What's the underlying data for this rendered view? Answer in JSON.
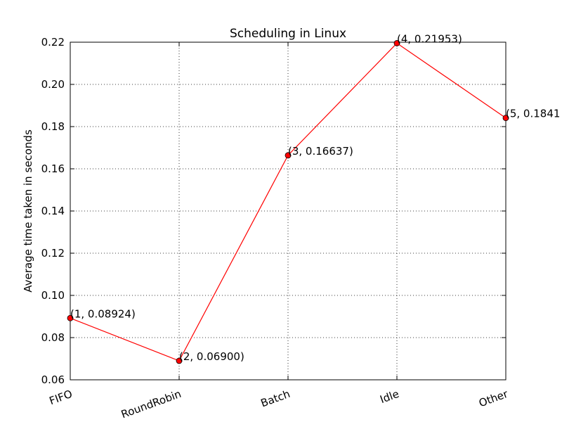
{
  "chart_data": {
    "type": "line",
    "title": "Scheduling in Linux",
    "xlabel": "",
    "ylabel": "Average time taken in seconds",
    "x": [
      1,
      2,
      3,
      4,
      5
    ],
    "categories": [
      "FIFO",
      "RoundRobin",
      "Batch",
      "Idle",
      "Other"
    ],
    "series": [
      {
        "values": [
          0.08924,
          0.069,
          0.16637,
          0.21953,
          0.1841
        ],
        "color": "#ff0000",
        "marker": "circle"
      }
    ],
    "point_labels": [
      "(1, 0.08924)",
      "(2, 0.06900)",
      "(3, 0.16637)",
      "(4, 0.21953)",
      "(5, 0.1841"
    ],
    "xlim": [
      1,
      5
    ],
    "ylim": [
      0.06,
      0.22
    ],
    "yticks": [
      0.06,
      0.08,
      0.1,
      0.12,
      0.14,
      0.16,
      0.18,
      0.2,
      0.22
    ],
    "ytick_labels": [
      "0.06",
      "0.08",
      "0.10",
      "0.12",
      "0.14",
      "0.16",
      "0.18",
      "0.20",
      "0.22"
    ],
    "grid": true,
    "legend": "none"
  }
}
